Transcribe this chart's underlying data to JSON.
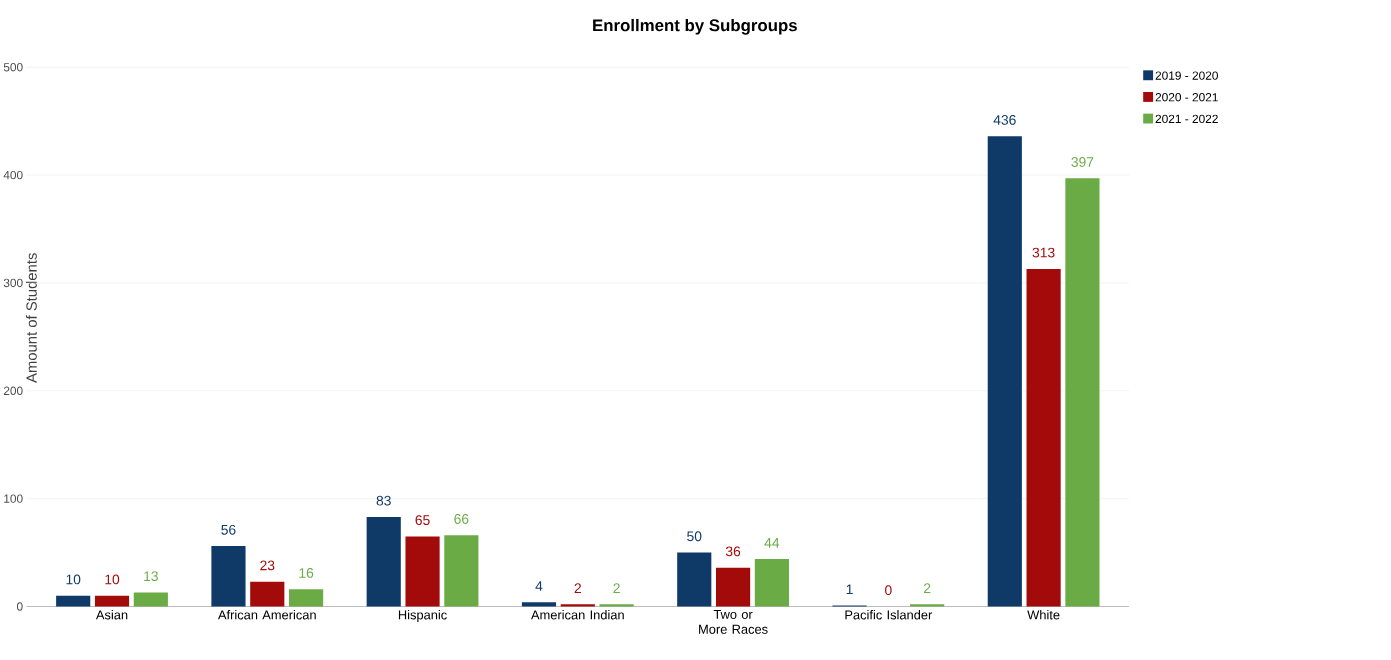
{
  "chart_data": {
    "type": "bar",
    "title": "Enrollment by Subgroups",
    "ylabel": "Amount of Students",
    "categories": [
      "Asian",
      "African American",
      "Hispanic",
      "American Indian",
      "Two or More Races",
      "Pacific Islander",
      "White"
    ],
    "series": [
      {
        "name": "2019 - 2020",
        "color": "#0f3a68",
        "values": [
          10,
          56,
          83,
          4,
          50,
          1,
          436
        ]
      },
      {
        "name": "2020 - 2021",
        "color": "#a30b0b",
        "values": [
          10,
          23,
          65,
          2,
          36,
          0,
          313
        ]
      },
      {
        "name": "2021 - 2022",
        "color": "#6aab45",
        "values": [
          13,
          16,
          66,
          2,
          44,
          2,
          397
        ]
      }
    ],
    "ylim": [
      0,
      500
    ],
    "yticks": [
      0,
      100,
      200,
      300,
      400,
      500
    ],
    "grid": "y",
    "legend": "top right",
    "data_labels": true
  }
}
